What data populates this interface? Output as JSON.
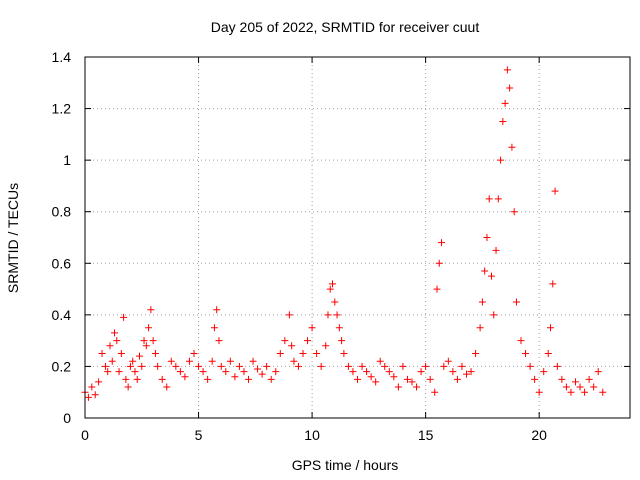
{
  "chart_data": {
    "type": "scatter",
    "title": "Day 205 of 2022, SRMTID for receiver cuut",
    "xlabel": "GPS time / hours",
    "ylabel": "SRMTID / TECUs",
    "xlim": [
      0,
      24
    ],
    "ylim": [
      0,
      1.4
    ],
    "xticks": [
      0,
      5,
      10,
      15,
      20
    ],
    "xtick_labels": [
      "0",
      "5",
      "10",
      "15",
      "20"
    ],
    "yticks": [
      0,
      0.2,
      0.4,
      0.6,
      0.8,
      1.0,
      1.2,
      1.4
    ],
    "ytick_labels": [
      "0",
      "0.2",
      "0.4",
      "0.6",
      "0.8",
      "1",
      "1.2",
      "1.4"
    ],
    "grid": true,
    "marker": "+",
    "color": "#ff0000",
    "series": [
      {
        "name": "SRMTID",
        "x": [
          0.0,
          0.15,
          0.3,
          0.45,
          0.6,
          0.75,
          0.9,
          1.0,
          1.1,
          1.2,
          1.3,
          1.4,
          1.5,
          1.6,
          1.7,
          1.8,
          1.9,
          2.0,
          2.1,
          2.2,
          2.3,
          2.4,
          2.5,
          2.6,
          2.7,
          2.8,
          2.9,
          3.0,
          3.1,
          3.2,
          3.4,
          3.6,
          3.8,
          4.0,
          4.2,
          4.4,
          4.6,
          4.8,
          5.0,
          5.2,
          5.4,
          5.6,
          5.7,
          5.8,
          5.9,
          6.0,
          6.2,
          6.4,
          6.6,
          6.8,
          7.0,
          7.2,
          7.4,
          7.6,
          7.8,
          8.0,
          8.2,
          8.4,
          8.6,
          8.8,
          9.0,
          9.1,
          9.2,
          9.4,
          9.6,
          9.8,
          10.0,
          10.2,
          10.4,
          10.6,
          10.7,
          10.8,
          10.9,
          11.0,
          11.1,
          11.2,
          11.3,
          11.4,
          11.6,
          11.8,
          12.0,
          12.2,
          12.4,
          12.6,
          12.8,
          13.0,
          13.2,
          13.4,
          13.6,
          13.8,
          14.0,
          14.2,
          14.4,
          14.6,
          14.8,
          15.0,
          15.2,
          15.4,
          15.5,
          15.6,
          15.7,
          15.8,
          16.0,
          16.2,
          16.4,
          16.6,
          16.8,
          17.0,
          17.2,
          17.4,
          17.5,
          17.6,
          17.7,
          17.8,
          17.9,
          18.0,
          18.1,
          18.2,
          18.3,
          18.4,
          18.5,
          18.6,
          18.7,
          18.8,
          18.9,
          19.0,
          19.2,
          19.4,
          19.6,
          19.8,
          20.0,
          20.2,
          20.4,
          20.5,
          20.6,
          20.7,
          20.8,
          21.0,
          21.2,
          21.4,
          21.6,
          21.8,
          22.0,
          22.2,
          22.4,
          22.6,
          22.8
        ],
        "y": [
          0.1,
          0.08,
          0.12,
          0.09,
          0.14,
          0.25,
          0.2,
          0.18,
          0.28,
          0.22,
          0.33,
          0.3,
          0.18,
          0.25,
          0.39,
          0.15,
          0.12,
          0.2,
          0.22,
          0.18,
          0.15,
          0.24,
          0.2,
          0.3,
          0.28,
          0.35,
          0.42,
          0.3,
          0.25,
          0.2,
          0.15,
          0.12,
          0.22,
          0.2,
          0.18,
          0.16,
          0.22,
          0.25,
          0.2,
          0.18,
          0.15,
          0.22,
          0.35,
          0.42,
          0.3,
          0.2,
          0.18,
          0.22,
          0.16,
          0.2,
          0.18,
          0.15,
          0.22,
          0.19,
          0.17,
          0.2,
          0.15,
          0.18,
          0.25,
          0.3,
          0.4,
          0.28,
          0.22,
          0.2,
          0.25,
          0.3,
          0.35,
          0.25,
          0.2,
          0.28,
          0.4,
          0.5,
          0.52,
          0.45,
          0.4,
          0.35,
          0.3,
          0.25,
          0.2,
          0.18,
          0.15,
          0.2,
          0.18,
          0.16,
          0.14,
          0.22,
          0.2,
          0.18,
          0.16,
          0.12,
          0.2,
          0.15,
          0.14,
          0.12,
          0.18,
          0.2,
          0.15,
          0.1,
          0.5,
          0.6,
          0.68,
          0.2,
          0.22,
          0.18,
          0.15,
          0.2,
          0.17,
          0.18,
          0.25,
          0.35,
          0.45,
          0.57,
          0.7,
          0.85,
          0.55,
          0.4,
          0.65,
          0.85,
          1.0,
          1.15,
          1.22,
          1.35,
          1.28,
          1.05,
          0.8,
          0.45,
          0.3,
          0.25,
          0.2,
          0.15,
          0.1,
          0.18,
          0.25,
          0.35,
          0.52,
          0.88,
          0.2,
          0.15,
          0.12,
          0.1,
          0.14,
          0.12,
          0.1,
          0.15,
          0.12,
          0.18,
          0.1
        ]
      }
    ]
  }
}
